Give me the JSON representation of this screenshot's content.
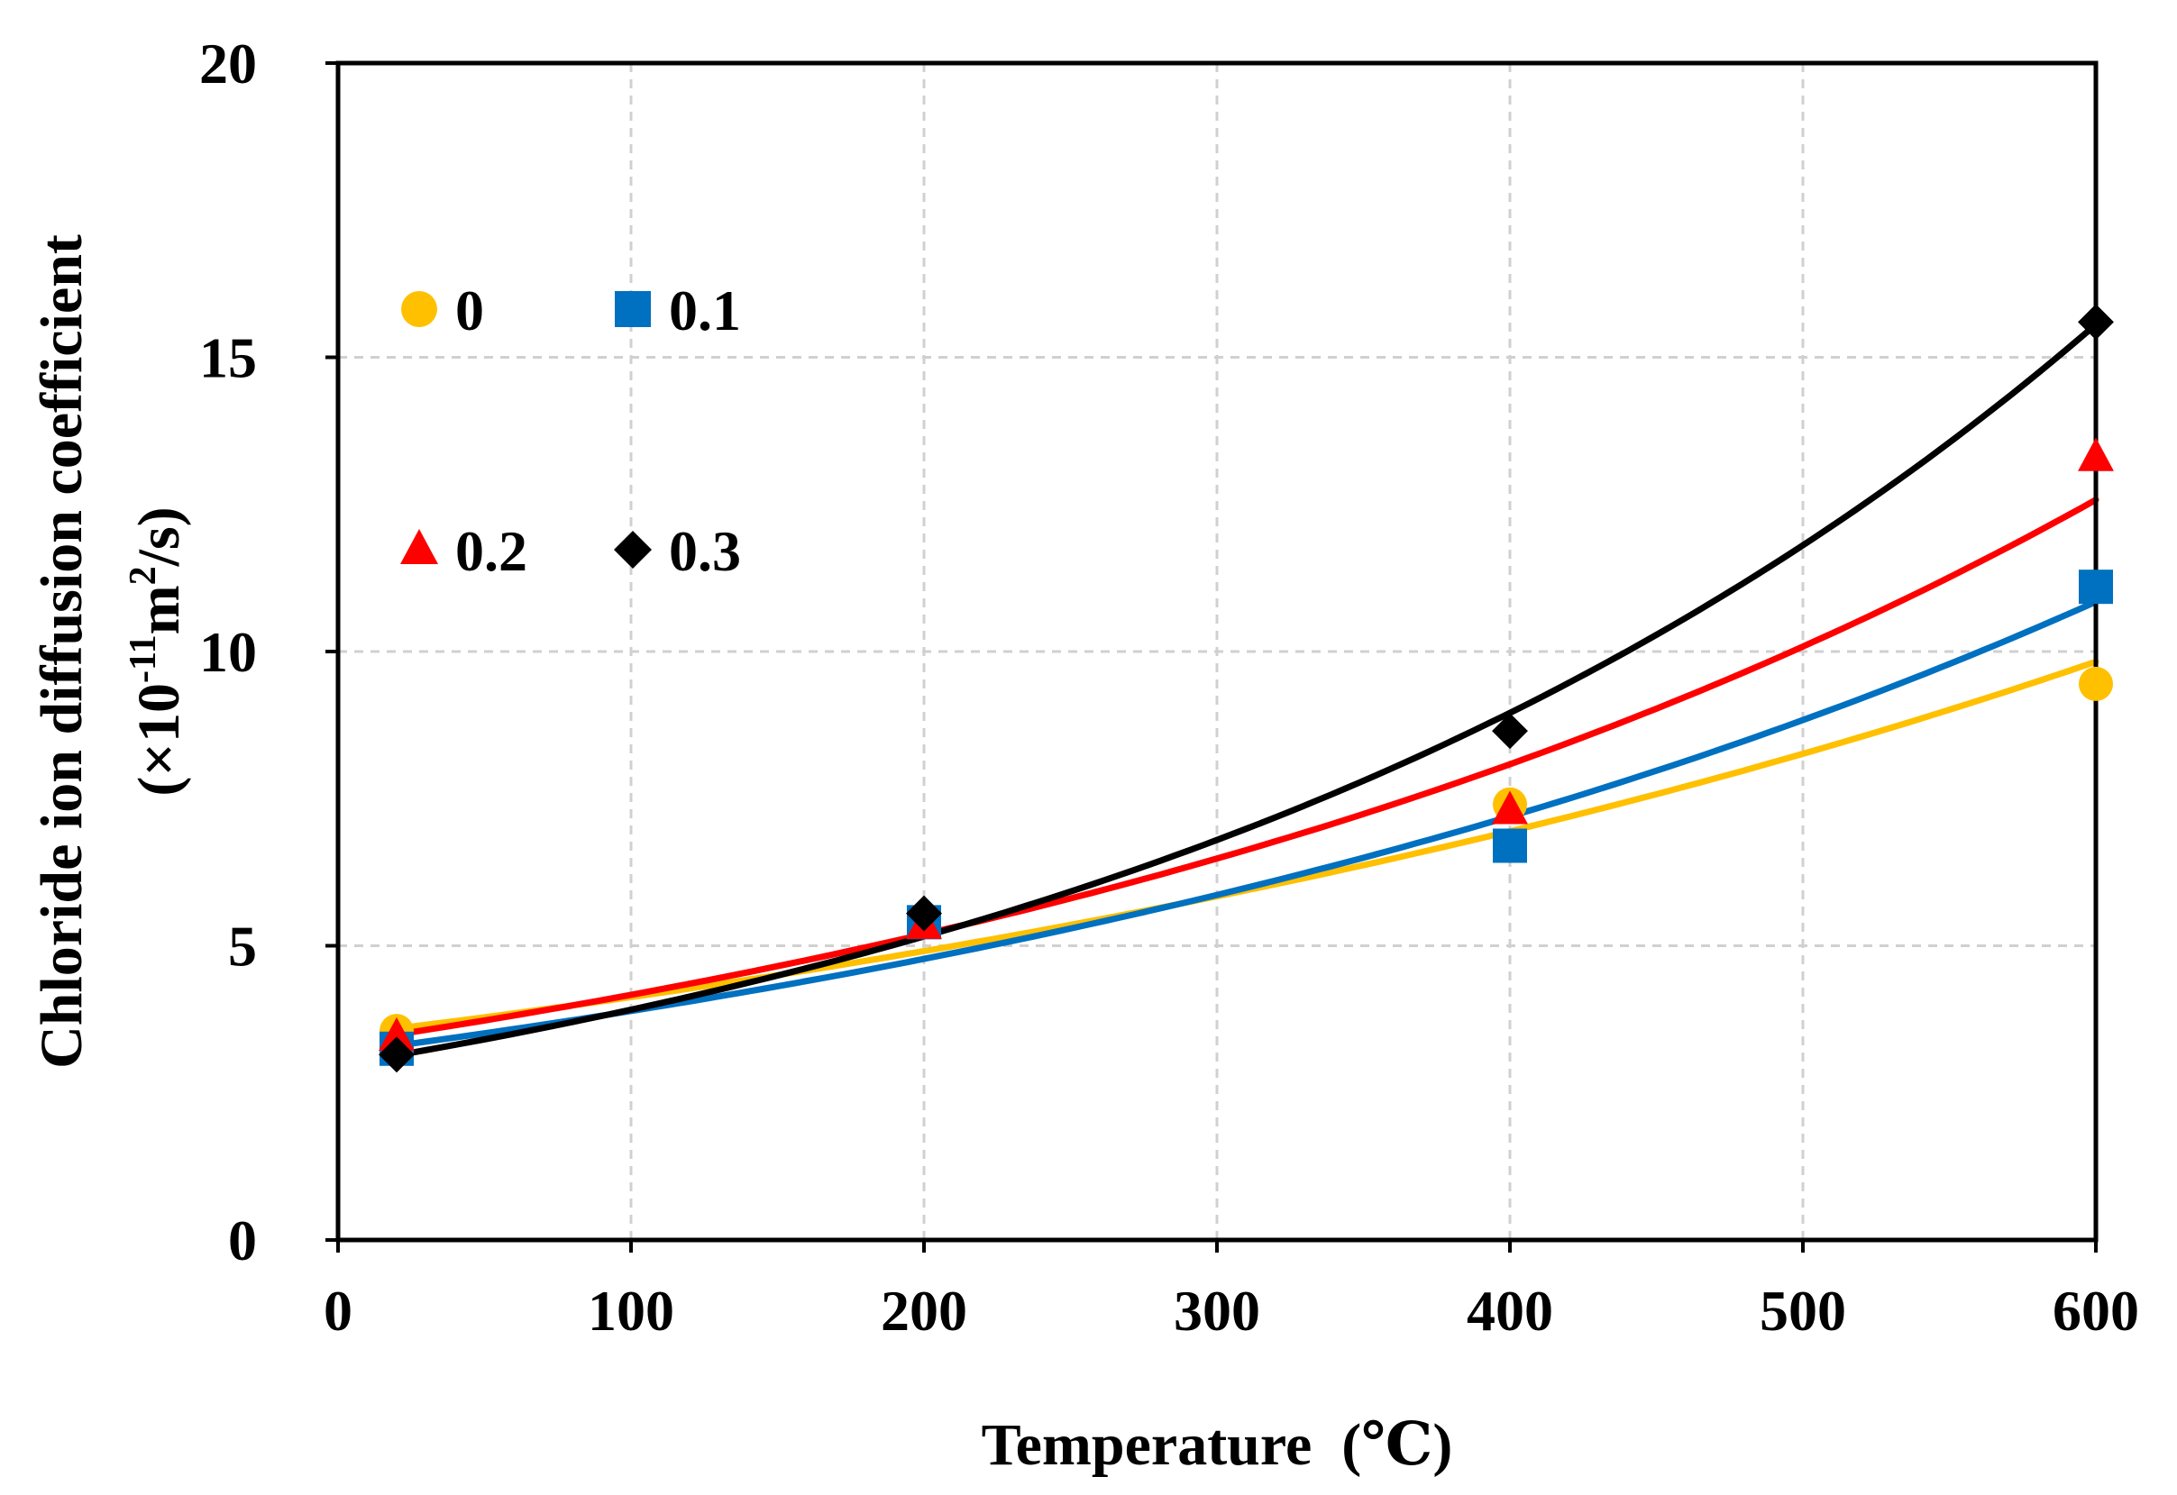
{
  "chart_data": {
    "type": "scatter",
    "title": "",
    "xlabel": "Temperature  (℃)",
    "ylabel_line1": "Chloride ion diffusion coefficient",
    "ylabel_line2_prefix": "(×10",
    "ylabel_line2_sup1": "-11",
    "ylabel_line2_mid": "m",
    "ylabel_line2_sup2": "2",
    "ylabel_line2_suffix": "/s)",
    "xlim": [
      0,
      600
    ],
    "ylim": [
      0,
      20
    ],
    "xticks": [
      0,
      100,
      200,
      300,
      400,
      500,
      600
    ],
    "yticks": [
      0,
      5,
      10,
      15,
      20
    ],
    "x_tick_labels": [
      "0",
      "100",
      "200",
      "300",
      "400",
      "500",
      "600"
    ],
    "y_tick_labels": [
      "0",
      "5",
      "10",
      "15",
      "20"
    ],
    "grid": true,
    "legend_position": "top-left",
    "series": [
      {
        "name": "0",
        "marker": "circle",
        "color": "#FFC000",
        "x": [
          20,
          200,
          400,
          600
        ],
        "y": [
          3.55,
          5.4,
          7.4,
          9.45
        ],
        "fit": {
          "type": "exponential",
          "a": 3.47,
          "b": 0.001735
        }
      },
      {
        "name": "0.1",
        "marker": "square",
        "color": "#0070C0",
        "x": [
          20,
          200,
          400,
          600
        ],
        "y": [
          3.25,
          5.4,
          6.7,
          11.1
        ],
        "fit": {
          "type": "exponential",
          "a": 3.17,
          "b": 0.00205
        }
      },
      {
        "name": "0.2",
        "marker": "triangle",
        "color": "#FF0000",
        "x": [
          20,
          200,
          400,
          600
        ],
        "y": [
          3.45,
          5.35,
          7.3,
          13.3
        ],
        "fit": {
          "type": "exponential",
          "a": 3.34,
          "b": 0.00221
        }
      },
      {
        "name": "0.3",
        "marker": "diamond",
        "color": "#000000",
        "x": [
          20,
          200,
          400,
          600
        ],
        "y": [
          3.15,
          5.55,
          8.65,
          15.6
        ],
        "fit": {
          "type": "exponential",
          "a": 2.97,
          "b": 0.00276
        }
      }
    ]
  }
}
